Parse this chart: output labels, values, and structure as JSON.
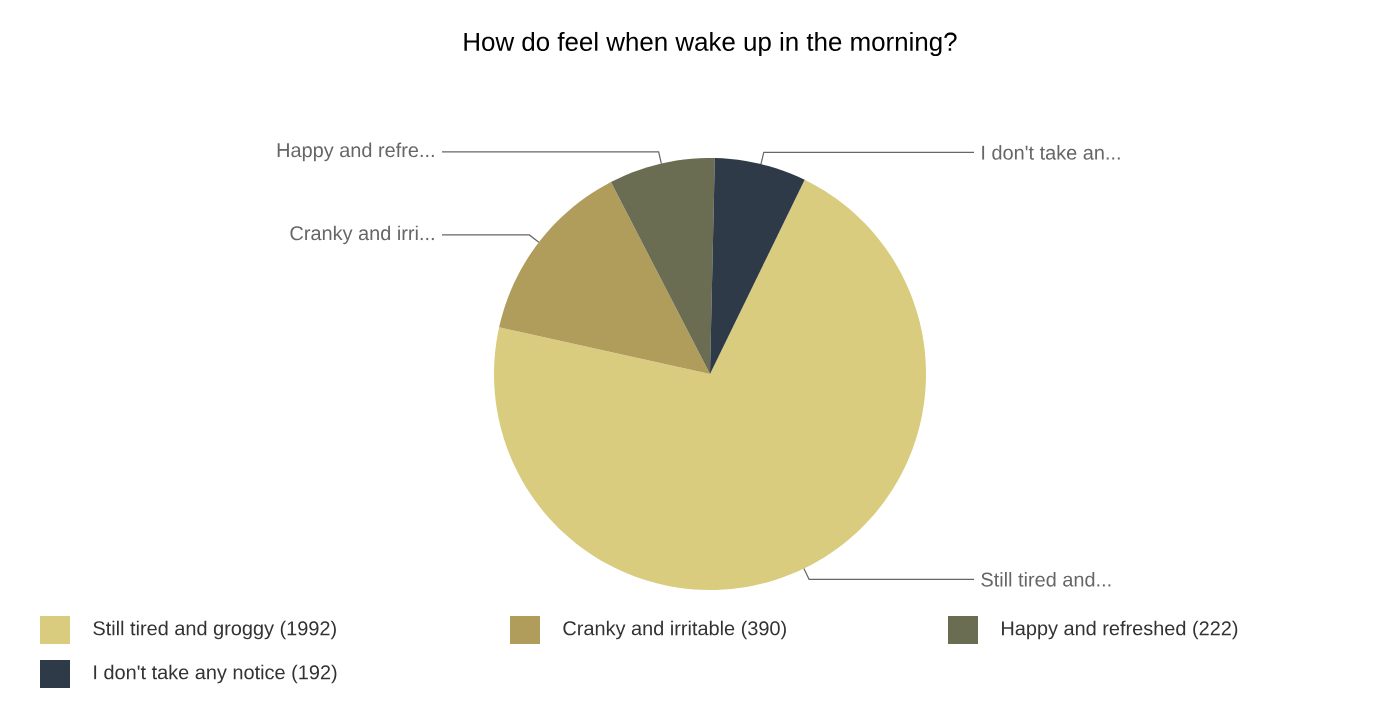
{
  "chart_data": {
    "type": "pie",
    "title": "How do feel when wake up in the morning?",
    "categories": [
      "Still tired and groggy (1992)",
      "Cranky and irritable (390)",
      "Happy and refreshed (222)",
      "I don't take any notice (192)"
    ],
    "values": [
      1992,
      390,
      222,
      192
    ],
    "colors": [
      "#d9cc7e",
      "#b09d5c",
      "#6a6d52",
      "#2f3a48"
    ],
    "annotations": [
      "Still tired and...",
      "Cranky and irri...",
      "Happy and refre...",
      "I don't take an..."
    ],
    "legend": "bottom"
  }
}
